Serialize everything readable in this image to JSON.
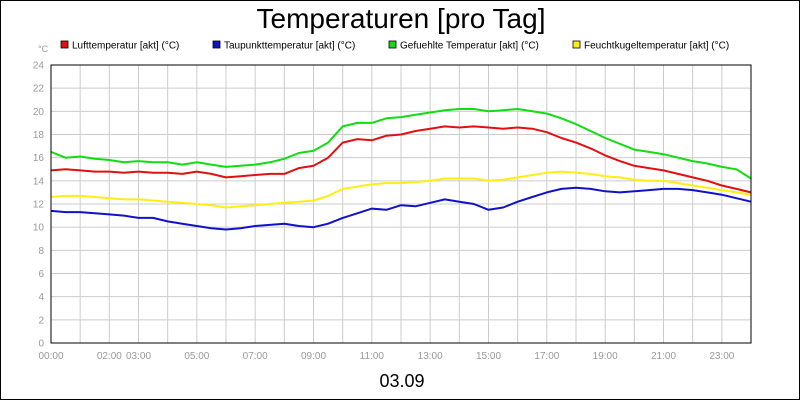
{
  "chart_data": {
    "type": "line",
    "title": "Temperaturen [pro Tag]",
    "date_label": "03.09",
    "y_unit": "°C",
    "ylim": [
      0,
      24
    ],
    "y_ticks": [
      0,
      2,
      4,
      6,
      8,
      10,
      12,
      14,
      16,
      18,
      20,
      22,
      24
    ],
    "xlim": [
      0,
      24
    ],
    "x_ticks": [
      {
        "h": 0,
        "label": "00:00"
      },
      {
        "h": 2,
        "label": "02:00"
      },
      {
        "h": 3,
        "label": "03:00"
      },
      {
        "h": 5,
        "label": "05:00"
      },
      {
        "h": 7,
        "label": "07:00"
      },
      {
        "h": 9,
        "label": "09:00"
      },
      {
        "h": 11,
        "label": "11:00"
      },
      {
        "h": 13,
        "label": "13:00"
      },
      {
        "h": 15,
        "label": "15:00"
      },
      {
        "h": 17,
        "label": "17:00"
      },
      {
        "h": 19,
        "label": "19:00"
      },
      {
        "h": 21,
        "label": "21:00"
      },
      {
        "h": 23,
        "label": "23:00"
      }
    ],
    "grid": true,
    "legend_position": "top",
    "x": [
      0,
      0.5,
      1,
      1.5,
      2,
      2.5,
      3,
      3.5,
      4,
      4.5,
      5,
      5.5,
      6,
      6.5,
      7,
      7.5,
      8,
      8.5,
      9,
      9.5,
      10,
      10.5,
      11,
      11.5,
      12,
      12.5,
      13,
      13.5,
      14,
      14.5,
      15,
      15.5,
      16,
      16.5,
      17,
      17.5,
      18,
      18.5,
      19,
      19.5,
      20,
      20.5,
      21,
      21.5,
      22,
      22.5,
      23,
      23.5,
      24
    ],
    "series": [
      {
        "name": "Lufttemperatur [akt] (°C)",
        "color": "#e21010",
        "values": [
          14.9,
          15.0,
          14.9,
          14.8,
          14.8,
          14.7,
          14.8,
          14.7,
          14.7,
          14.6,
          14.8,
          14.6,
          14.3,
          14.4,
          14.5,
          14.6,
          14.6,
          15.1,
          15.3,
          16.0,
          17.3,
          17.6,
          17.5,
          17.9,
          18.0,
          18.3,
          18.5,
          18.7,
          18.6,
          18.7,
          18.6,
          18.5,
          18.6,
          18.5,
          18.2,
          17.7,
          17.3,
          16.8,
          16.2,
          15.7,
          15.3,
          15.1,
          14.9,
          14.6,
          14.3,
          14.0,
          13.6,
          13.3,
          13.0
        ]
      },
      {
        "name": "Taupunkttemperatur [akt] (°C)",
        "color": "#1111cc",
        "values": [
          11.4,
          11.3,
          11.3,
          11.2,
          11.1,
          11.0,
          10.8,
          10.8,
          10.5,
          10.3,
          10.1,
          9.9,
          9.8,
          9.9,
          10.1,
          10.2,
          10.3,
          10.1,
          10.0,
          10.3,
          10.8,
          11.2,
          11.6,
          11.5,
          11.9,
          11.8,
          12.1,
          12.4,
          12.2,
          12.0,
          11.5,
          11.7,
          12.2,
          12.6,
          13.0,
          13.3,
          13.4,
          13.3,
          13.1,
          13.0,
          13.1,
          13.2,
          13.3,
          13.3,
          13.2,
          13.0,
          12.8,
          12.5,
          12.2
        ]
      },
      {
        "name": "Gefuehlte Temperatur [akt] (°C)",
        "color": "#11dd11",
        "values": [
          16.5,
          16.0,
          16.1,
          15.9,
          15.8,
          15.6,
          15.7,
          15.6,
          15.6,
          15.4,
          15.6,
          15.4,
          15.2,
          15.3,
          15.4,
          15.6,
          15.9,
          16.4,
          16.6,
          17.3,
          18.7,
          19.0,
          19.0,
          19.4,
          19.5,
          19.7,
          19.9,
          20.1,
          20.2,
          20.2,
          20.0,
          20.1,
          20.2,
          20.0,
          19.8,
          19.4,
          18.9,
          18.3,
          17.7,
          17.2,
          16.7,
          16.5,
          16.3,
          16.0,
          15.7,
          15.5,
          15.2,
          15.0,
          14.2
        ]
      },
      {
        "name": "Feuchtkugeltemperatur [akt] (°C)",
        "color": "#ffee11",
        "values": [
          12.6,
          12.7,
          12.7,
          12.6,
          12.5,
          12.4,
          12.4,
          12.3,
          12.2,
          12.1,
          12.0,
          11.9,
          11.7,
          11.8,
          11.9,
          12.0,
          12.1,
          12.2,
          12.3,
          12.7,
          13.3,
          13.5,
          13.7,
          13.8,
          13.8,
          13.9,
          14.0,
          14.2,
          14.2,
          14.2,
          14.0,
          14.1,
          14.3,
          14.5,
          14.7,
          14.8,
          14.7,
          14.6,
          14.4,
          14.3,
          14.1,
          14.0,
          14.0,
          13.8,
          13.6,
          13.4,
          13.2,
          13.0,
          12.8
        ]
      }
    ]
  }
}
